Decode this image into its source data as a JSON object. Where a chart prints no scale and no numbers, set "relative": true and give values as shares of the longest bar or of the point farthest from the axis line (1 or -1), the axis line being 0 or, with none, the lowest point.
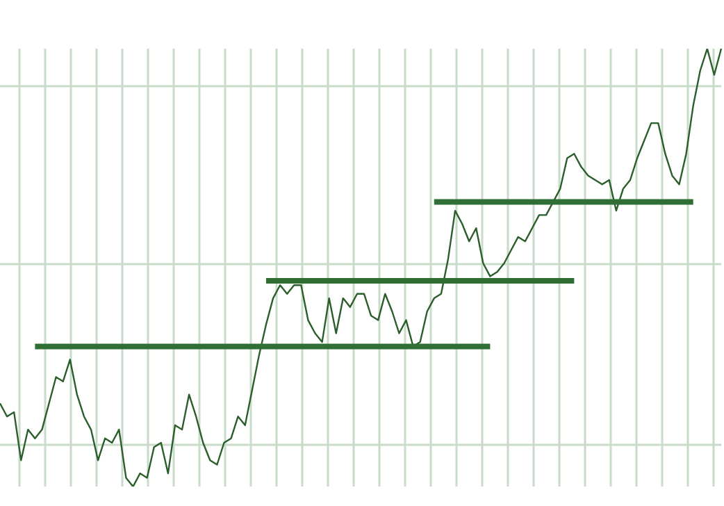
{
  "chart_data": {
    "type": "line",
    "relative": true,
    "grid": true,
    "categories": [
      null,
      null,
      null,
      null,
      null,
      null,
      null,
      null,
      null,
      null,
      null,
      null,
      null,
      null,
      null,
      null,
      null,
      null,
      null,
      null,
      null,
      null,
      null,
      null,
      null,
      null,
      null,
      null,
      null,
      null,
      null,
      null,
      null,
      null,
      null,
      null,
      null,
      null,
      null,
      null,
      null,
      null,
      null,
      null,
      null,
      null,
      null,
      null,
      null,
      null,
      null,
      null,
      null,
      null,
      null,
      null,
      null,
      null,
      null,
      null,
      null,
      null,
      null,
      null,
      null,
      null,
      null,
      null,
      null,
      null,
      null,
      null,
      null,
      null,
      null,
      null,
      null,
      null,
      null,
      null,
      null,
      null,
      null,
      null,
      null,
      null,
      null,
      null,
      null,
      null,
      null,
      null,
      null,
      null,
      null,
      null,
      null,
      null,
      null,
      null,
      null,
      null,
      null,
      null
    ],
    "series": [
      {
        "color": "#2b5e2b",
        "values": [
          0.19,
          0.16,
          0.17,
          0.06,
          0.13,
          0.11,
          0.13,
          0.19,
          0.25,
          0.24,
          0.29,
          0.21,
          0.16,
          0.13,
          0.06,
          0.11,
          0.1,
          0.13,
          0.02,
          0,
          0.03,
          0.02,
          0.09,
          0.1,
          0.03,
          0.14,
          0.13,
          0.21,
          0.16,
          0.1,
          0.06,
          0.05,
          0.1,
          0.11,
          0.16,
          0.14,
          0.22,
          0.3,
          0.37,
          0.43,
          0.46,
          0.44,
          0.46,
          0.46,
          0.38,
          0.35,
          0.33,
          0.43,
          0.35,
          0.43,
          0.41,
          0.44,
          0.44,
          0.39,
          0.38,
          0.44,
          0.4,
          0.35,
          0.38,
          0.32,
          0.33,
          0.4,
          0.43,
          0.44,
          0.52,
          0.63,
          0.6,
          0.56,
          0.59,
          0.51,
          0.48,
          0.49,
          0.51,
          0.54,
          0.57,
          0.56,
          0.59,
          0.62,
          0.62,
          0.65,
          0.68,
          0.75,
          0.76,
          0.73,
          0.71,
          0.7,
          0.69,
          0.7,
          0.63,
          0.68,
          0.7,
          0.75,
          0.79,
          0.83,
          0.83,
          0.76,
          0.71,
          0.69,
          0.76,
          0.87,
          0.95,
          1,
          0.94,
          1
        ]
      },
      {
        "type": "line",
        "color": "#2f6e34",
        "values": [
          null,
          null,
          null,
          null,
          null,
          0.32,
          null,
          null,
          null,
          null,
          null,
          null,
          null,
          null,
          null,
          null,
          null,
          null,
          null,
          null,
          null,
          null,
          null,
          null,
          null,
          null,
          null,
          null,
          null,
          null,
          null,
          null,
          null,
          null,
          null,
          null,
          null,
          null,
          null,
          null,
          null,
          null,
          null,
          null,
          null,
          null,
          null,
          null,
          null,
          null,
          null,
          null,
          null,
          null,
          null,
          null,
          null,
          null,
          null,
          null,
          null,
          null,
          null,
          null,
          null,
          null,
          null,
          null,
          null,
          null,
          0.32,
          null,
          null,
          null,
          null,
          null,
          null,
          null,
          null,
          null,
          null,
          null,
          null,
          null,
          null,
          null,
          null,
          null,
          null,
          null,
          null,
          null,
          null,
          null,
          null,
          null,
          null,
          null,
          null,
          null,
          null,
          null,
          null,
          null
        ]
      },
      {
        "type": "line",
        "color": "#2f6e34",
        "values": [
          null,
          null,
          null,
          null,
          null,
          null,
          null,
          null,
          null,
          null,
          null,
          null,
          null,
          null,
          null,
          null,
          null,
          null,
          null,
          null,
          null,
          null,
          null,
          null,
          null,
          null,
          null,
          null,
          null,
          null,
          null,
          null,
          null,
          null,
          null,
          null,
          null,
          null,
          0.47,
          null,
          null,
          null,
          null,
          null,
          null,
          null,
          null,
          null,
          null,
          null,
          null,
          null,
          null,
          null,
          null,
          null,
          null,
          null,
          null,
          null,
          null,
          null,
          null,
          null,
          null,
          null,
          null,
          null,
          null,
          null,
          null,
          null,
          null,
          null,
          null,
          null,
          null,
          null,
          null,
          null,
          null,
          null,
          0.47,
          null,
          null,
          null,
          null,
          null,
          null,
          null,
          null,
          null,
          null,
          null,
          null,
          null,
          null,
          null,
          null,
          null,
          null,
          null,
          null,
          null
        ]
      },
      {
        "type": "line",
        "color": "#2f6e34",
        "values": [
          null,
          null,
          null,
          null,
          null,
          null,
          null,
          null,
          null,
          null,
          null,
          null,
          null,
          null,
          null,
          null,
          null,
          null,
          null,
          null,
          null,
          null,
          null,
          null,
          null,
          null,
          null,
          null,
          null,
          null,
          null,
          null,
          null,
          null,
          null,
          null,
          null,
          null,
          null,
          null,
          null,
          null,
          null,
          null,
          null,
          null,
          null,
          null,
          null,
          null,
          null,
          null,
          null,
          null,
          null,
          null,
          null,
          null,
          null,
          null,
          null,
          null,
          0.65,
          null,
          null,
          null,
          null,
          null,
          null,
          null,
          null,
          null,
          null,
          null,
          null,
          null,
          null,
          null,
          null,
          null,
          null,
          null,
          null,
          null,
          null,
          null,
          null,
          null,
          null,
          null,
          null,
          null,
          null,
          null,
          null,
          null,
          null,
          null,
          null,
          0.65,
          null,
          null,
          null,
          null
        ]
      }
    ]
  }
}
